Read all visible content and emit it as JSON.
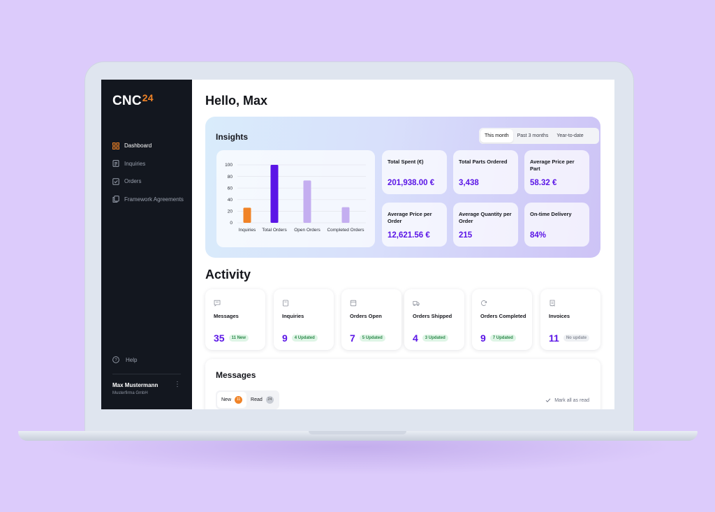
{
  "brand": {
    "name": "CNC",
    "suffix": "24",
    "accent": "#f08327",
    "primary": "#5b16e6"
  },
  "sidebar": {
    "items": [
      {
        "label": "Dashboard",
        "icon": "grid-icon",
        "active": true
      },
      {
        "label": "Inquiries",
        "icon": "document-icon"
      },
      {
        "label": "Orders",
        "icon": "checklist-icon"
      },
      {
        "label": "Framework Agreements",
        "icon": "copy-icon"
      }
    ],
    "help": "Help",
    "user": {
      "name": "Max Mustermann",
      "company": "Musterfirma GmbH"
    }
  },
  "greeting": "Hello, Max",
  "insights": {
    "title": "Insights",
    "ranges": [
      "This month",
      "Past 3 months",
      "Year-to-date"
    ],
    "selected_range": "This month",
    "stats": [
      {
        "label": "Total Spent (€)",
        "value": "201,938.00 €"
      },
      {
        "label": "Total Parts Ordered",
        "value": "3,438"
      },
      {
        "label": "Average Price per Part",
        "value": "58.32 €"
      },
      {
        "label": "Average Price per Order",
        "value": "12,621.56 €"
      },
      {
        "label": "Average Quantity per Order",
        "value": "215"
      },
      {
        "label": "On-time Delivery",
        "value": "84%"
      }
    ]
  },
  "chart_data": {
    "type": "bar",
    "categories": [
      "Inquiries",
      "Total Orders",
      "Open Orders",
      "Completed Orders"
    ],
    "values": [
      26,
      100,
      73,
      27
    ],
    "colors": [
      "#f08327",
      "#5b16e6",
      "#c4aef0",
      "#c4aef0"
    ],
    "yticks": [
      0,
      20,
      40,
      60,
      80,
      100
    ],
    "ylim": [
      0,
      100
    ],
    "grid": true
  },
  "activity": {
    "title": "Activity",
    "cards": [
      {
        "label": "Messages",
        "count": "35",
        "badge": "11 New",
        "icon": "chat-icon"
      },
      {
        "label": "Inquiries",
        "count": "9",
        "badge": "4 Updated",
        "icon": "doc-icon"
      },
      {
        "label": "Orders Open",
        "count": "7",
        "badge": "5 Updated",
        "icon": "box-icon"
      },
      {
        "label": "Orders Shipped",
        "count": "4",
        "badge": "3 Updated",
        "icon": "truck-icon"
      },
      {
        "label": "Orders Completed",
        "count": "9",
        "badge": "7 Updated",
        "icon": "refresh-icon"
      },
      {
        "label": "Invoices",
        "count": "11",
        "badge": "No update",
        "icon": "receipt-icon",
        "muted": true
      }
    ]
  },
  "messages": {
    "title": "Messages",
    "tabs": [
      {
        "label": "New",
        "count": "11"
      },
      {
        "label": "Read",
        "count": "24"
      }
    ],
    "mark_all": "Mark all as read"
  }
}
